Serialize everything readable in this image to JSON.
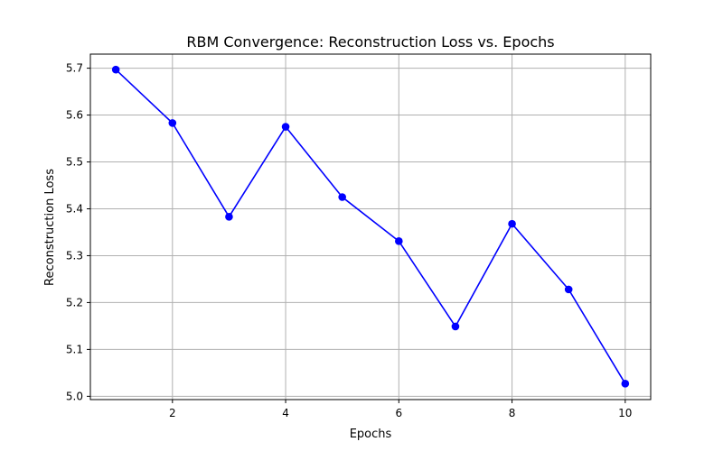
{
  "chart_data": {
    "type": "line",
    "title": "RBM Convergence: Reconstruction Loss vs. Epochs",
    "xlabel": "Epochs",
    "ylabel": "Reconstruction Loss",
    "x": [
      1,
      2,
      3,
      4,
      5,
      6,
      7,
      8,
      9,
      10
    ],
    "series": [
      {
        "values": [
          5.697,
          5.583,
          5.383,
          5.575,
          5.425,
          5.331,
          5.149,
          5.368,
          5.228,
          5.027
        ],
        "color": "#0000ff",
        "marker": "circle"
      }
    ],
    "xlim": [
      0.55,
      10.45
    ],
    "ylim": [
      4.993,
      5.73
    ],
    "xticks": [
      2,
      4,
      6,
      8,
      10
    ],
    "yticks": [
      5.0,
      5.1,
      5.2,
      5.3,
      5.4,
      5.5,
      5.6,
      5.7
    ],
    "ytick_labels": [
      "5.0",
      "5.1",
      "5.2",
      "5.3",
      "5.4",
      "5.5",
      "5.6",
      "5.7"
    ],
    "grid": true,
    "legend": "none"
  }
}
